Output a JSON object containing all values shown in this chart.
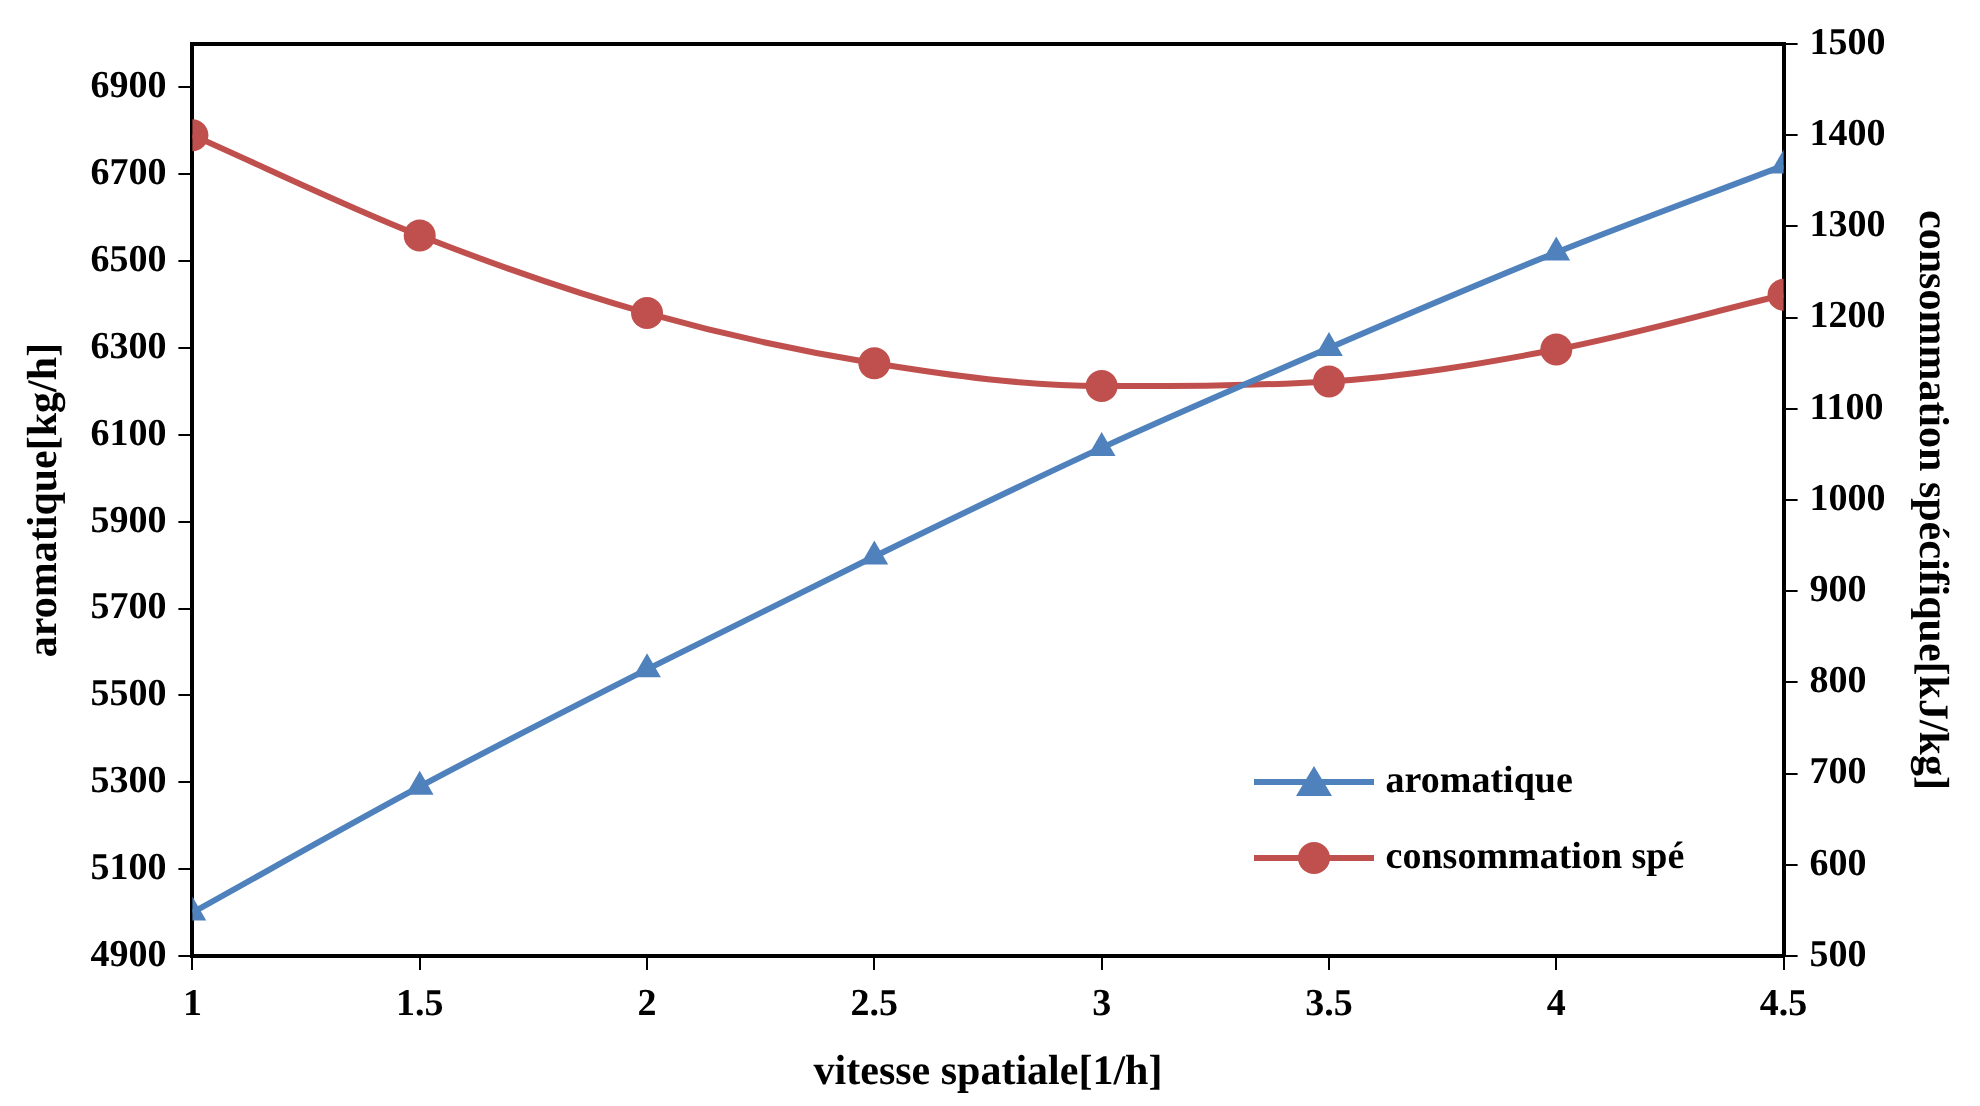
{
  "chart_data": {
    "type": "line",
    "xlabel": "vitesse spatiale[1/h]",
    "ylabel": "aromatique[kg/h]",
    "y2label": "consommation spécifique[kJ/kg]",
    "x": [
      1,
      1.5,
      2,
      2.5,
      3,
      3.5,
      4,
      4.5
    ],
    "xlim": [
      1,
      4.5
    ],
    "xticks": [
      1,
      1.5,
      2,
      2.5,
      3,
      3.5,
      4,
      4.5
    ],
    "ylim": [
      4900,
      7000
    ],
    "yticks": [
      4900,
      5100,
      5300,
      5500,
      5700,
      5900,
      6100,
      6300,
      6500,
      6700,
      6900
    ],
    "y2lim": [
      500,
      1500
    ],
    "y2ticks": [
      500,
      600,
      700,
      800,
      900,
      1000,
      1100,
      1200,
      1300,
      1400,
      1500
    ],
    "series": [
      {
        "name": "aromatique",
        "color": "#4f81bd",
        "marker": "triangle",
        "values": [
          5000,
          5290,
          5560,
          5820,
          6070,
          6300,
          6520,
          6720
        ]
      },
      {
        "name": "consommation spé",
        "color": "#c0504d",
        "marker": "circle",
        "axis": "y2",
        "values": [
          1400,
          1290,
          1205,
          1150,
          1125,
          1130,
          1165,
          1225
        ]
      }
    ],
    "grid": false,
    "legend": "bottom right",
    "line_style": "solid"
  }
}
